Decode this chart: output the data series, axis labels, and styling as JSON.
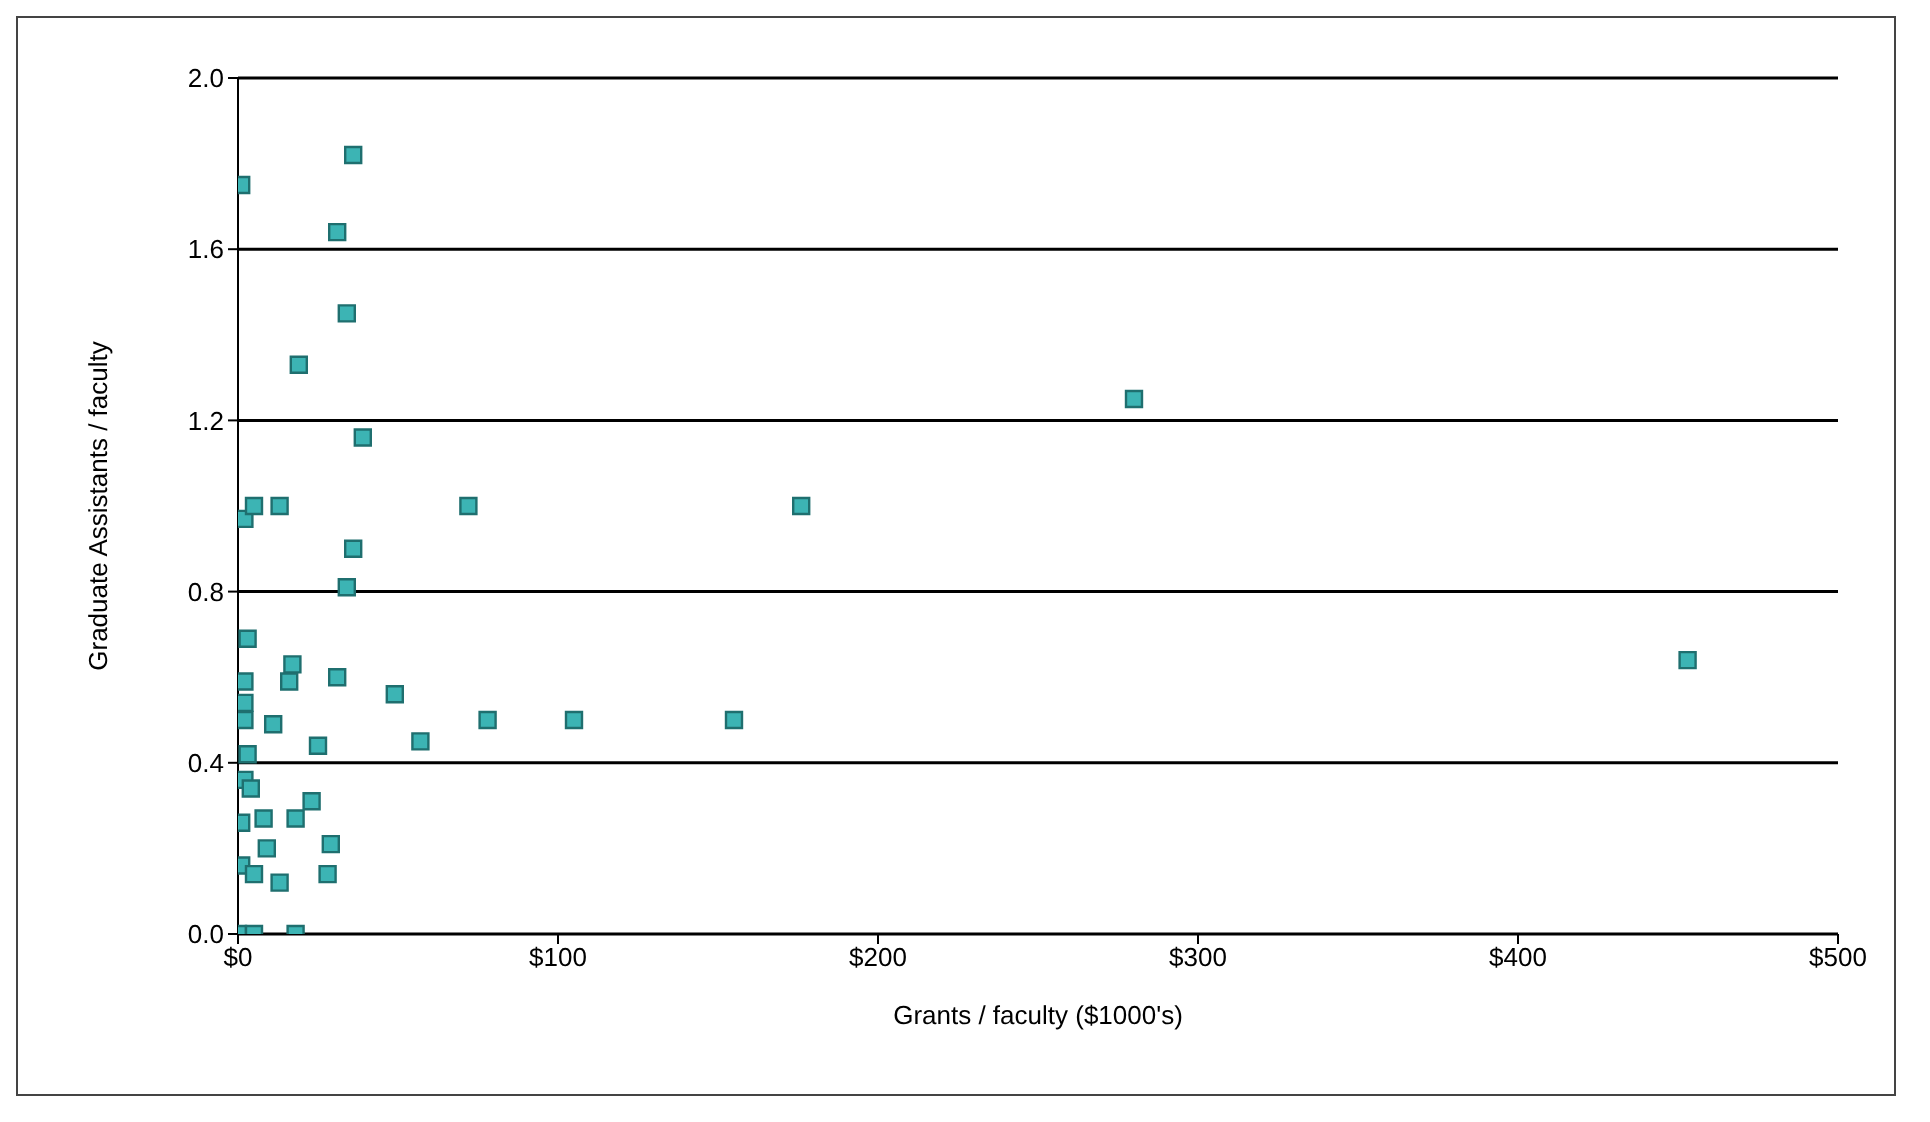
{
  "chart_data": {
    "type": "scatter",
    "xlabel": "Grants / faculty ($1000's)",
    "ylabel": "Graduate Assistants / faculty",
    "marker": "square",
    "grid": "y",
    "xlim": [
      0,
      500
    ],
    "xticks": [
      {
        "value": 0,
        "label": "$0"
      },
      {
        "value": 100,
        "label": "$100"
      },
      {
        "value": 200,
        "label": "$200"
      },
      {
        "value": 300,
        "label": "$300"
      },
      {
        "value": 400,
        "label": "$400"
      },
      {
        "value": 500,
        "label": "$500"
      }
    ],
    "ylim": [
      0,
      2
    ],
    "yticks": [
      {
        "value": 0,
        "label": "0.0"
      },
      {
        "value": 0.4,
        "label": "0.4"
      },
      {
        "value": 0.8,
        "label": "0.8"
      },
      {
        "value": 1.2,
        "label": "1.2"
      },
      {
        "value": 1.6,
        "label": "1.6"
      },
      {
        "value": 2,
        "label": "2.0"
      }
    ],
    "x": [
      36,
      1,
      31,
      34,
      19,
      39,
      2,
      5,
      13,
      72,
      36,
      34,
      3,
      17,
      16,
      31,
      49,
      2,
      2,
      2,
      11,
      57,
      25,
      3,
      2,
      4,
      23,
      1,
      8,
      18,
      9,
      29,
      1,
      5,
      13,
      28,
      0,
      5,
      18,
      280,
      176,
      453,
      78,
      105,
      155
    ],
    "series": [
      {
        "color": "#3cb4b4",
        "values": [
          1.82,
          1.75,
          1.64,
          1.45,
          1.33,
          1.16,
          0.97,
          1.0,
          1.0,
          1.0,
          0.9,
          0.81,
          0.69,
          0.63,
          0.59,
          0.6,
          0.56,
          0.59,
          0.54,
          0.5,
          0.49,
          0.45,
          0.44,
          0.42,
          0.36,
          0.34,
          0.31,
          0.26,
          0.27,
          0.27,
          0.2,
          0.21,
          0.16,
          0.14,
          0.12,
          0.14,
          0.0,
          0.0,
          0.0,
          1.25,
          1.0,
          0.64,
          0.5,
          0.5,
          0.5
        ]
      }
    ]
  }
}
